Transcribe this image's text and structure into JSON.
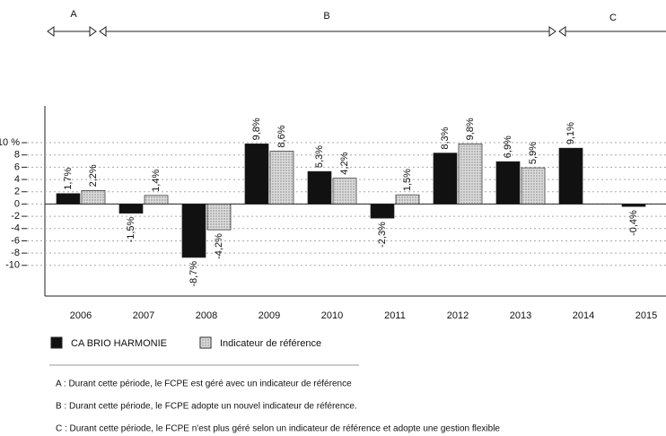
{
  "chart_data": {
    "type": "bar",
    "periods": [
      "A",
      "B",
      "C"
    ],
    "categories": [
      "2006",
      "2007",
      "2008",
      "2009",
      "2010",
      "2011",
      "2012",
      "2013",
      "2014",
      "2015"
    ],
    "series": [
      {
        "name": "CA BRIO HARMONIE",
        "color": "#111111",
        "values": [
          1.7,
          -1.5,
          -8.7,
          9.8,
          5.3,
          -2.3,
          8.3,
          6.9,
          9.1,
          -0.4
        ],
        "value_labels": [
          "1,7%",
          "-1,5%",
          "-8,7%",
          "9,8%",
          "5,3%",
          "-2,3%",
          "8,3%",
          "6,9%",
          "9,1%",
          "-0,4%"
        ]
      },
      {
        "name": "Indicateur de référence",
        "color": "#dcdcdc",
        "values": [
          2.2,
          1.4,
          -4.2,
          8.6,
          4.2,
          1.5,
          9.8,
          5.9,
          null,
          null
        ],
        "value_labels": [
          "2,2%",
          "1,4%",
          "-4,2%",
          "8,6%",
          "4,2%",
          "1,5%",
          "9,8%",
          "5,9%",
          null,
          null
        ]
      }
    ],
    "ylim": [
      -15,
      16
    ],
    "yticks": [
      {
        "value": 10,
        "label": "10 %"
      },
      8,
      6,
      4,
      2,
      0,
      -2,
      -4,
      -6,
      -8,
      -10
    ],
    "grid": true,
    "notes": [
      "A : Durant cette période, le FCPE est géré avec un indicateur de référence",
      "B : Durant cette période, le FCPE adopte un nouvel indicateur de référence.",
      "C : Durant cette période, le FCPE n'est plus géré selon un indicateur de référence et adopte une gestion flexible"
    ]
  }
}
